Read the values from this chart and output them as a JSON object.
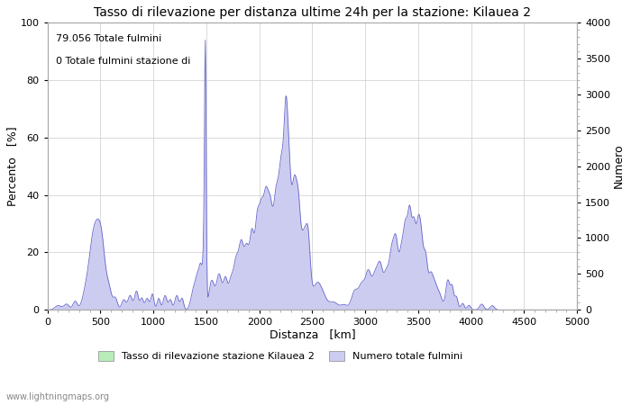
{
  "title": "Tasso di rilevazione per distanza ultime 24h per la stazione: Kilauea 2",
  "annotation_line1": "79.056 Totale fulmini",
  "annotation_line2": "0 Totale fulmini stazione di",
  "xlabel": "Distanza   [km]",
  "ylabel_left": "Percento   [%]",
  "ylabel_right": "Numero",
  "xlim": [
    0,
    5000
  ],
  "ylim_left": [
    0,
    100
  ],
  "ylim_right": [
    0,
    4000
  ],
  "xticks": [
    0,
    500,
    1000,
    1500,
    2000,
    2500,
    3000,
    3500,
    4000,
    4500,
    5000
  ],
  "yticks_left": [
    0,
    20,
    40,
    60,
    80,
    100
  ],
  "yticks_right": [
    0,
    500,
    1000,
    1500,
    2000,
    2500,
    3000,
    3500,
    4000
  ],
  "legend_label1": "Tasso di rilevazione stazione Kilauea 2",
  "legend_label2": "Numero totale fulmini",
  "fill_color_green": "#b8ecb8",
  "fill_color_blue": "#ccccf0",
  "line_color": "#6666cc",
  "watermark": "www.lightningmaps.org",
  "background_color": "#ffffff",
  "grid_color": "#cccccc",
  "title_fontsize": 10,
  "axis_fontsize": 9,
  "tick_fontsize": 8,
  "figwidth": 7.0,
  "figheight": 4.5,
  "figdpi": 100
}
